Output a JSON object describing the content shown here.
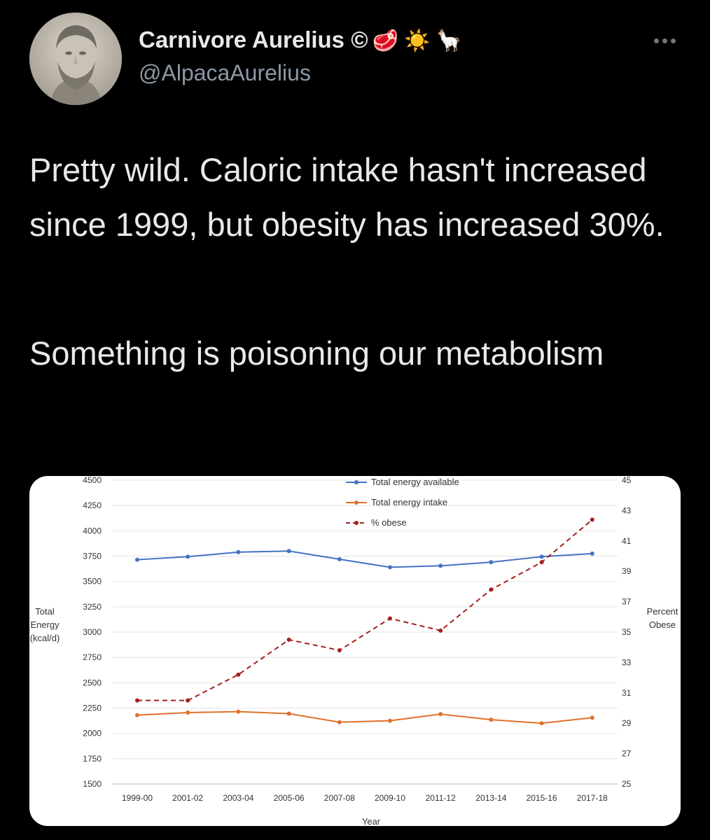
{
  "author": {
    "name": "Carnivore Aurelius ©",
    "emoji": "🥩 ☀️ 🦙",
    "handle": "@AlpacaAurelius"
  },
  "tweet": {
    "paragraphs": [
      "Pretty wild. Caloric intake hasn't increased since 1999, but obesity has increased 30%.",
      "Something is poisoning our metabolism"
    ]
  },
  "colors": {
    "background": "#000000",
    "text": "#e7e9ea",
    "handle": "#8b98a5",
    "available": "#4472c4",
    "intake": "#e0712c",
    "obese": "#a3201d"
  },
  "icons": {
    "more": "more-horizontal-icon",
    "avatar": "marcus-aurelius-bust-avatar"
  },
  "chart_data": {
    "type": "line",
    "categories": [
      "1999-00",
      "2001-02",
      "2003-04",
      "2005-06",
      "2007-08",
      "2009-10",
      "2011-12",
      "2013-14",
      "2015-16",
      "2017-18"
    ],
    "xlabel": "Year",
    "ylabel_left": [
      "Total",
      "Energy",
      "(kcal/d)"
    ],
    "ylabel_right": [
      "Percent",
      "Obese"
    ],
    "ylim_left": [
      1500,
      4500
    ],
    "yticks_left": [
      "4500",
      "4250",
      "4000",
      "3750",
      "3500",
      "3250",
      "3000",
      "2750",
      "2500",
      "2250",
      "2000",
      "1750",
      "1500"
    ],
    "ylim_right": [
      25,
      45
    ],
    "yticks_right": [
      "45",
      "43",
      "41",
      "39",
      "37",
      "35",
      "33",
      "31",
      "29",
      "27",
      "25"
    ],
    "legend_position": "top-center",
    "series": [
      {
        "name": "Total energy available",
        "axis": "left",
        "style": "solid",
        "color": "#4472c4",
        "values": [
          3715,
          3745,
          3790,
          3800,
          3720,
          3640,
          3655,
          3690,
          3745,
          3775
        ]
      },
      {
        "name": "Total energy intake",
        "axis": "left",
        "style": "solid",
        "color": "#e0712c",
        "values": [
          2180,
          2205,
          2215,
          2195,
          2110,
          2125,
          2190,
          2135,
          2100,
          2155
        ]
      },
      {
        "name": "% obese",
        "axis": "right",
        "style": "dashed",
        "color": "#a3201d",
        "values": [
          30.5,
          30.5,
          32.2,
          34.5,
          33.8,
          35.9,
          35.1,
          37.8,
          39.6,
          42.4
        ]
      }
    ]
  }
}
